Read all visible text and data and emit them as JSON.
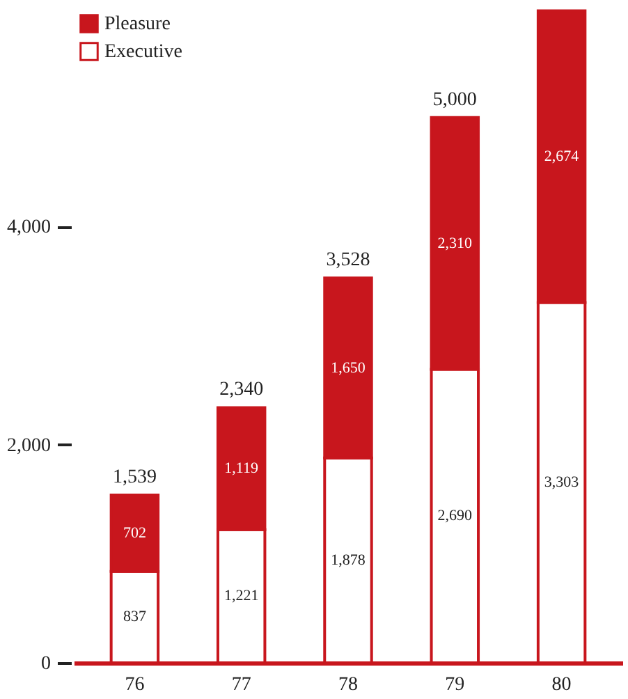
{
  "chart_data": {
    "type": "bar",
    "stacked": true,
    "categories": [
      "76",
      "77",
      "78",
      "79",
      "80"
    ],
    "series": [
      {
        "name": "Executive",
        "color": "#ffffff",
        "values": [
          837,
          1221,
          1878,
          2690,
          3303
        ],
        "value_labels": [
          "837",
          "1,221",
          "1,878",
          "2,690",
          "3,303"
        ]
      },
      {
        "name": "Pleasure",
        "color": "#c8161d",
        "values": [
          702,
          1119,
          1650,
          2310,
          2674
        ],
        "value_labels": [
          "702",
          "1,119",
          "1,650",
          "2,310",
          "2,674"
        ]
      }
    ],
    "totals": [
      "1,539",
      "2,340",
      "3,528",
      "5,000",
      null
    ],
    "ylim": [
      0,
      6000
    ],
    "yticks": [
      0,
      {
        "value": 2000,
        "label": "2,000"
      },
      {
        "value": 4000,
        "label": "4,000"
      }
    ],
    "grid": false,
    "legend": "top left"
  }
}
